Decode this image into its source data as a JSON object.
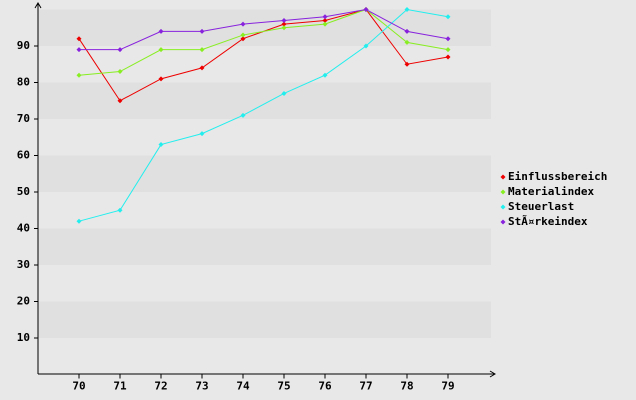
{
  "chart_data": {
    "type": "line",
    "x": [
      70,
      71,
      72,
      73,
      74,
      75,
      76,
      77,
      78,
      79
    ],
    "xlim": [
      69,
      80
    ],
    "xticks": [
      70,
      71,
      72,
      73,
      74,
      75,
      76,
      77,
      78,
      79
    ],
    "ylim": [
      0,
      100
    ],
    "yticks": [
      10,
      20,
      30,
      40,
      50,
      60,
      70,
      80,
      90
    ],
    "grid": true,
    "legend": "right",
    "series": [
      {
        "name": "Einflussbereich",
        "color": "#ee0000",
        "values": [
          92,
          75,
          81,
          84,
          92,
          96,
          97,
          100,
          85,
          87
        ]
      },
      {
        "name": "Materialindex",
        "color": "#88ee22",
        "values": [
          82,
          83,
          89,
          89,
          93,
          95,
          96,
          100,
          91,
          89
        ]
      },
      {
        "name": "Steuerlast",
        "color": "#22eeee",
        "values": [
          42,
          45,
          63,
          66,
          71,
          77,
          82,
          90,
          100,
          98
        ]
      },
      {
        "name": "StÃ¤rkeindex",
        "color": "#8822dd",
        "values": [
          89,
          89,
          94,
          94,
          96,
          97,
          98,
          100,
          94,
          92
        ]
      }
    ]
  }
}
